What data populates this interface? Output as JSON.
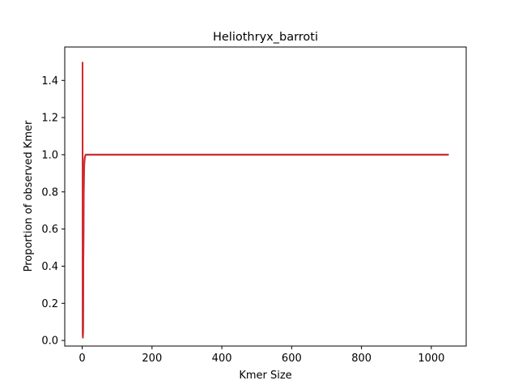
{
  "chart_data": {
    "type": "line",
    "title": "Heliothryx_barroti",
    "xlabel": "Kmer Size",
    "ylabel": "Proportion of observed Kmer",
    "xlim": [
      -50,
      1100
    ],
    "ylim": [
      -0.03,
      1.58
    ],
    "xticks": [
      0,
      200,
      400,
      600,
      800,
      1000
    ],
    "yticks": [
      0.0,
      0.2,
      0.4,
      0.6,
      0.8,
      1.0,
      1.2,
      1.4
    ],
    "xtick_labels": [
      "0",
      "200",
      "400",
      "600",
      "800",
      "1000"
    ],
    "ytick_labels": [
      "0.0",
      "0.2",
      "0.4",
      "0.6",
      "0.8",
      "1.0",
      "1.2",
      "1.4"
    ],
    "grid": false,
    "series": [
      {
        "color": "#1f77b4",
        "x": [
          1,
          1.5,
          2,
          2.5,
          3,
          4,
          5,
          6,
          7,
          8,
          10,
          12,
          15,
          20,
          50,
          100,
          500,
          1050
        ],
        "y": [
          1.25,
          0.05,
          0.02,
          0.05,
          0.3,
          0.7,
          0.9,
          0.96,
          0.98,
          0.99,
          1.0,
          1.0,
          1.0,
          1.0,
          1.0,
          1.0,
          1.0,
          1.0
        ]
      },
      {
        "color": "#9467bd",
        "x": [
          1,
          1.5,
          2,
          2.5,
          3,
          4,
          5,
          6,
          7,
          8,
          10,
          12,
          15,
          20,
          50,
          100,
          500,
          1050
        ],
        "y": [
          1.2,
          0.04,
          0.02,
          0.06,
          0.32,
          0.72,
          0.91,
          0.97,
          0.98,
          0.99,
          1.0,
          1.0,
          1.0,
          1.0,
          1.0,
          1.0,
          1.0,
          1.0
        ]
      },
      {
        "color": "#d62728",
        "x": [
          1,
          1.5,
          2,
          2.5,
          3,
          4,
          5,
          6,
          7,
          8,
          10,
          12,
          15,
          20,
          50,
          100,
          500,
          1050
        ],
        "y": [
          1.5,
          0.03,
          0.015,
          0.04,
          0.28,
          0.68,
          0.88,
          0.95,
          0.97,
          0.99,
          1.0,
          1.0,
          1.0,
          1.0,
          1.0,
          1.0,
          1.0,
          1.0
        ]
      }
    ]
  }
}
